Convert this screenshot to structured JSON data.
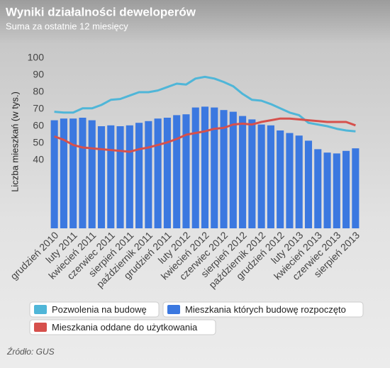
{
  "chart_data": {
    "type": "bar",
    "title": "Wyniki działalności deweloperów",
    "subtitle": "Suma za ostatnie 12 miesięcy",
    "y_label": "Liczba mieszkań (w tys.)",
    "source": "Źródło: GUS",
    "categories": [
      "grudzień 2010",
      null,
      "luty 2011",
      null,
      "kwiecień 2011",
      null,
      "czerwiec 2011",
      null,
      "sierpień 2011",
      null,
      "październik 2011",
      null,
      "grudzień 2011",
      null,
      "luty 2012",
      null,
      "kwiecień 2012",
      null,
      "czerwiec 2012",
      null,
      "sierpień 2012",
      null,
      "październik 2012",
      null,
      "grudzień 2012",
      null,
      "luty 2013",
      null,
      "kwiecień 2013",
      null,
      "czerwiec 2013",
      null,
      "sierpień 2013"
    ],
    "ylim": [
      0,
      100
    ],
    "yticks": [
      40,
      50,
      60,
      70,
      80,
      90,
      100
    ],
    "series": [
      {
        "name": "Pozwolenia na budowę",
        "type": "line",
        "color": "#4fb6d8",
        "values": [
          68.5,
          68,
          68,
          70.5,
          70.5,
          72.5,
          75.5,
          76,
          78,
          80,
          80,
          81,
          83,
          85,
          84.5,
          88,
          89,
          88,
          86,
          83.5,
          79,
          75.5,
          75,
          73,
          70.5,
          68,
          66.5,
          62,
          61,
          60,
          58.5,
          57.5,
          57
        ]
      },
      {
        "name": "Mieszkania których budowę rozpoczęto",
        "type": "bar",
        "color": "#3b78e0",
        "values": [
          63.5,
          64.5,
          64.5,
          65,
          63.5,
          60,
          60.5,
          60,
          60.5,
          62,
          63,
          64.5,
          65,
          66.5,
          67,
          71,
          71.5,
          71,
          69.5,
          68.5,
          66,
          64,
          61,
          60.5,
          57.5,
          56,
          54.5,
          51.5,
          46.5,
          44.5,
          44,
          45.5,
          47
        ]
      },
      {
        "name": "Mieszkania oddane do użytkowania",
        "type": "line",
        "color": "#d6504c",
        "values": [
          54,
          52,
          49,
          47.5,
          47,
          46.5,
          46,
          45.5,
          45,
          46.5,
          47.5,
          49,
          50.5,
          52.5,
          55,
          56,
          57,
          58.5,
          59,
          61,
          61.5,
          61,
          62.5,
          63.5,
          64.5,
          64.5,
          64,
          63.5,
          63,
          62.5,
          62.5,
          62.5,
          60.5
        ]
      }
    ]
  }
}
